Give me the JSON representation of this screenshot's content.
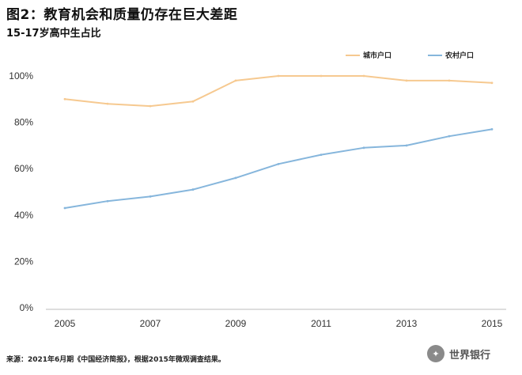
{
  "header": {
    "title": "图2：教育机会和质量仍存在巨大差距",
    "subtitle": "15-17岁高中生占比"
  },
  "footer": {
    "source": "来源：2021年6月期《中国经济简报》，根据2015年微观调查结果。",
    "watermark": "世界银行"
  },
  "colors": {
    "urban": "#f6c990",
    "rural": "#86b6dc",
    "axis": "#bdbdbd"
  },
  "chart_data": {
    "type": "line",
    "title": "图2：教育机会和质量仍存在巨大差距",
    "subtitle": "15-17岁高中生占比",
    "x": [
      2005,
      2006,
      2007,
      2008,
      2009,
      2010,
      2011,
      2012,
      2013,
      2014,
      2015
    ],
    "x_ticks": [
      "2005",
      "2007",
      "2009",
      "2011",
      "2013",
      "2015"
    ],
    "y_ticks": [
      "0%",
      "20%",
      "40%",
      "60%",
      "80%",
      "100%"
    ],
    "ylim": [
      0,
      100
    ],
    "xlim": [
      2005,
      2015
    ],
    "legend_position": "top-right",
    "series": [
      {
        "name": "城市户口",
        "color": "#f6c990",
        "values": [
          90,
          88,
          87,
          89,
          98,
          100,
          100,
          100,
          98,
          98,
          97
        ]
      },
      {
        "name": "农村户口",
        "color": "#86b6dc",
        "values": [
          43,
          46,
          48,
          51,
          56,
          62,
          66,
          69,
          70,
          74,
          77
        ]
      }
    ]
  }
}
